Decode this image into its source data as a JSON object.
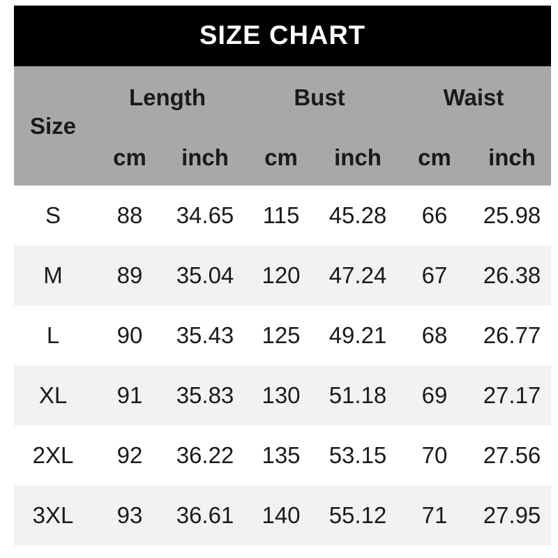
{
  "title": "SIZE CHART",
  "colors": {
    "title_bg": "#000000",
    "title_text": "#ffffff",
    "header_bg": "#a8a8a8",
    "row_bg": "#ffffff",
    "row_alt_bg": "#f2f2f2",
    "text": "#1a1a1a"
  },
  "table": {
    "corner_label": "Size",
    "groups": [
      {
        "label": "Length"
      },
      {
        "label": "Bust"
      },
      {
        "label": "Waist"
      }
    ],
    "unit_headers": [
      "cm",
      "inch",
      "cm",
      "inch",
      "cm",
      "inch"
    ],
    "rows": [
      {
        "size": "S",
        "values": [
          "88",
          "34.65",
          "115",
          "45.28",
          "66",
          "25.98"
        ]
      },
      {
        "size": "M",
        "values": [
          "89",
          "35.04",
          "120",
          "47.24",
          "67",
          "26.38"
        ]
      },
      {
        "size": "L",
        "values": [
          "90",
          "35.43",
          "125",
          "49.21",
          "68",
          "26.77"
        ]
      },
      {
        "size": "XL",
        "values": [
          "91",
          "35.83",
          "130",
          "51.18",
          "69",
          "27.17"
        ]
      },
      {
        "size": "2XL",
        "values": [
          "92",
          "36.22",
          "135",
          "53.15",
          "70",
          "27.56"
        ]
      },
      {
        "size": "3XL",
        "values": [
          "93",
          "36.61",
          "140",
          "55.12",
          "71",
          "27.95"
        ]
      }
    ]
  },
  "chart_data": {
    "type": "table",
    "title": "SIZE CHART",
    "column_groups": [
      "Length",
      "Bust",
      "Waist"
    ],
    "columns": [
      "Size",
      "Length cm",
      "Length inch",
      "Bust cm",
      "Bust inch",
      "Waist cm",
      "Waist inch"
    ],
    "rows": [
      [
        "S",
        88,
        34.65,
        115,
        45.28,
        66,
        25.98
      ],
      [
        "M",
        89,
        35.04,
        120,
        47.24,
        67,
        26.38
      ],
      [
        "L",
        90,
        35.43,
        125,
        49.21,
        68,
        26.77
      ],
      [
        "XL",
        91,
        35.83,
        130,
        51.18,
        69,
        27.17
      ],
      [
        "2XL",
        92,
        36.22,
        135,
        53.15,
        70,
        27.56
      ],
      [
        "3XL",
        93,
        36.61,
        140,
        55.12,
        71,
        27.95
      ]
    ]
  }
}
